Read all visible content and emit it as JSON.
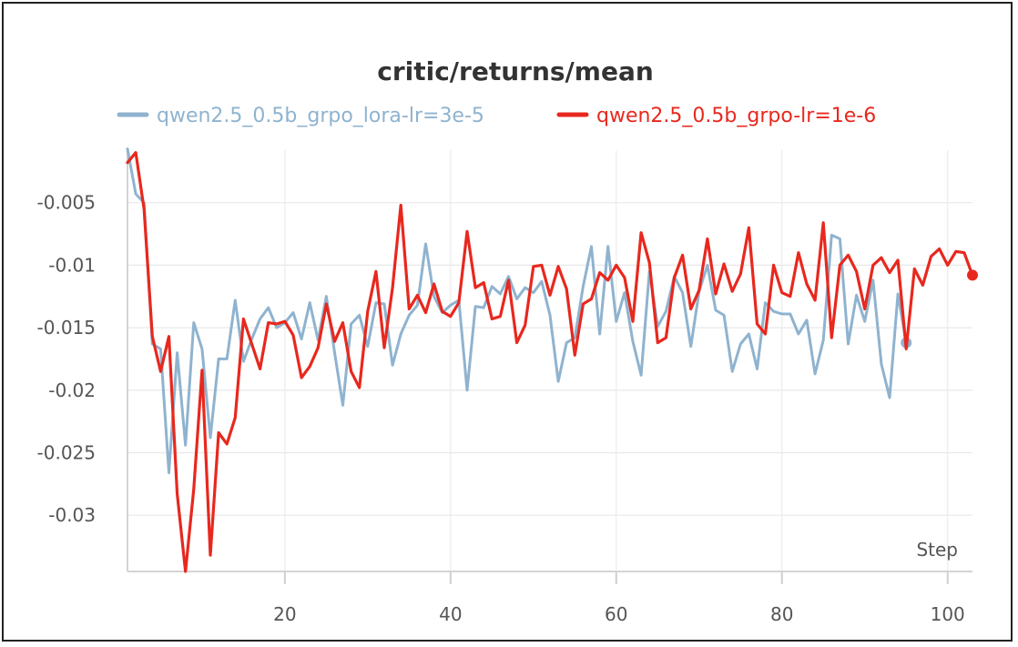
{
  "chart_data": {
    "type": "line",
    "title": "critic/returns/mean",
    "xlabel": "Step",
    "ylabel": "",
    "xlim": [
      1,
      103
    ],
    "ylim": [
      -0.0345,
      -0.0008
    ],
    "xticks": [
      20,
      40,
      60,
      80,
      100
    ],
    "yticks": [
      -0.005,
      -0.01,
      -0.015,
      -0.02,
      -0.025,
      -0.03
    ],
    "xtick_labels": [
      "20",
      "40",
      "60",
      "80",
      "100"
    ],
    "ytick_labels": [
      "-0.005",
      "-0.01",
      "-0.015",
      "-0.02",
      "-0.025",
      "-0.03"
    ],
    "grid": true,
    "legend_position": "top",
    "series": [
      {
        "name": "qwen2.5_0.5b_grpo_lora-lr=3e-5",
        "color": "#8fb3cf",
        "end_marker": "circle",
        "points": [
          [
            1,
            -0.0007
          ],
          [
            2,
            -0.0043
          ],
          [
            3,
            -0.005
          ],
          [
            4,
            -0.0163
          ],
          [
            5,
            -0.0167
          ],
          [
            6,
            -0.0266
          ],
          [
            7,
            -0.017
          ],
          [
            8,
            -0.0244
          ],
          [
            9,
            -0.0146
          ],
          [
            10,
            -0.0167
          ],
          [
            11,
            -0.0238
          ],
          [
            12,
            -0.0175
          ],
          [
            13,
            -0.0175
          ],
          [
            14,
            -0.0128
          ],
          [
            15,
            -0.0177
          ],
          [
            16,
            -0.0159
          ],
          [
            17,
            -0.0143
          ],
          [
            18,
            -0.0134
          ],
          [
            19,
            -0.015
          ],
          [
            20,
            -0.0146
          ],
          [
            21,
            -0.0138
          ],
          [
            22,
            -0.0159
          ],
          [
            23,
            -0.013
          ],
          [
            24,
            -0.016
          ],
          [
            25,
            -0.0125
          ],
          [
            26,
            -0.017
          ],
          [
            27,
            -0.0212
          ],
          [
            28,
            -0.0147
          ],
          [
            29,
            -0.014
          ],
          [
            30,
            -0.0165
          ],
          [
            31,
            -0.013
          ],
          [
            32,
            -0.0131
          ],
          [
            33,
            -0.018
          ],
          [
            34,
            -0.0155
          ],
          [
            35,
            -0.014
          ],
          [
            36,
            -0.0132
          ],
          [
            37,
            -0.0083
          ],
          [
            38,
            -0.0125
          ],
          [
            39,
            -0.0138
          ],
          [
            40,
            -0.0132
          ],
          [
            41,
            -0.0128
          ],
          [
            42,
            -0.02
          ],
          [
            43,
            -0.0133
          ],
          [
            44,
            -0.0134
          ],
          [
            45,
            -0.0117
          ],
          [
            46,
            -0.0123
          ],
          [
            47,
            -0.0109
          ],
          [
            48,
            -0.0127
          ],
          [
            49,
            -0.0118
          ],
          [
            50,
            -0.0122
          ],
          [
            51,
            -0.0113
          ],
          [
            52,
            -0.014
          ],
          [
            53,
            -0.0193
          ],
          [
            54,
            -0.0162
          ],
          [
            55,
            -0.0158
          ],
          [
            56,
            -0.0117
          ],
          [
            57,
            -0.0085
          ],
          [
            58,
            -0.0155
          ],
          [
            59,
            -0.0085
          ],
          [
            60,
            -0.0145
          ],
          [
            61,
            -0.0122
          ],
          [
            62,
            -0.0161
          ],
          [
            63,
            -0.0188
          ],
          [
            64,
            -0.0105
          ],
          [
            65,
            -0.0149
          ],
          [
            66,
            -0.0137
          ],
          [
            67,
            -0.0109
          ],
          [
            68,
            -0.0122
          ],
          [
            69,
            -0.0165
          ],
          [
            70,
            -0.0121
          ],
          [
            71,
            -0.01
          ],
          [
            72,
            -0.0136
          ],
          [
            73,
            -0.014
          ],
          [
            74,
            -0.0185
          ],
          [
            75,
            -0.0163
          ],
          [
            76,
            -0.0155
          ],
          [
            77,
            -0.0183
          ],
          [
            78,
            -0.013
          ],
          [
            79,
            -0.0137
          ],
          [
            80,
            -0.0139
          ],
          [
            81,
            -0.0139
          ],
          [
            82,
            -0.0155
          ],
          [
            83,
            -0.0144
          ],
          [
            84,
            -0.0187
          ],
          [
            85,
            -0.016
          ],
          [
            86,
            -0.0076
          ],
          [
            87,
            -0.0079
          ],
          [
            88,
            -0.0163
          ],
          [
            89,
            -0.0124
          ],
          [
            90,
            -0.0145
          ],
          [
            91,
            -0.0112
          ],
          [
            92,
            -0.0179
          ],
          [
            93,
            -0.0206
          ],
          [
            94,
            -0.0123
          ],
          [
            95,
            -0.0162
          ]
        ]
      },
      {
        "name": "qwen2.5_0.5b_grpo-lr=1e-6",
        "color": "#e8281e",
        "end_marker": "circle",
        "points": [
          [
            1,
            -0.0018
          ],
          [
            2,
            -0.001
          ],
          [
            3,
            -0.0055
          ],
          [
            4,
            -0.0157
          ],
          [
            5,
            -0.0185
          ],
          [
            6,
            -0.0157
          ],
          [
            7,
            -0.0283
          ],
          [
            8,
            -0.0345
          ],
          [
            9,
            -0.0279
          ],
          [
            10,
            -0.0184
          ],
          [
            11,
            -0.0332
          ],
          [
            12,
            -0.0234
          ],
          [
            13,
            -0.0243
          ],
          [
            14,
            -0.0222
          ],
          [
            15,
            -0.0143
          ],
          [
            16,
            -0.0163
          ],
          [
            17,
            -0.0183
          ],
          [
            18,
            -0.0146
          ],
          [
            19,
            -0.0147
          ],
          [
            20,
            -0.0145
          ],
          [
            21,
            -0.0156
          ],
          [
            22,
            -0.019
          ],
          [
            23,
            -0.0181
          ],
          [
            24,
            -0.0166
          ],
          [
            25,
            -0.0131
          ],
          [
            26,
            -0.0161
          ],
          [
            27,
            -0.0146
          ],
          [
            28,
            -0.0185
          ],
          [
            29,
            -0.0198
          ],
          [
            30,
            -0.0137
          ],
          [
            31,
            -0.0105
          ],
          [
            32,
            -0.0166
          ],
          [
            33,
            -0.0118
          ],
          [
            34,
            -0.0052
          ],
          [
            35,
            -0.0135
          ],
          [
            36,
            -0.0124
          ],
          [
            37,
            -0.0138
          ],
          [
            38,
            -0.0115
          ],
          [
            39,
            -0.0137
          ],
          [
            40,
            -0.0141
          ],
          [
            41,
            -0.013
          ],
          [
            42,
            -0.0073
          ],
          [
            43,
            -0.0118
          ],
          [
            44,
            -0.0114
          ],
          [
            45,
            -0.0143
          ],
          [
            46,
            -0.0141
          ],
          [
            47,
            -0.0112
          ],
          [
            48,
            -0.0162
          ],
          [
            49,
            -0.0148
          ],
          [
            50,
            -0.0101
          ],
          [
            51,
            -0.01
          ],
          [
            52,
            -0.0124
          ],
          [
            53,
            -0.0101
          ],
          [
            54,
            -0.0119
          ],
          [
            55,
            -0.0172
          ],
          [
            56,
            -0.0131
          ],
          [
            57,
            -0.0127
          ],
          [
            58,
            -0.0106
          ],
          [
            59,
            -0.0112
          ],
          [
            60,
            -0.01
          ],
          [
            61,
            -0.011
          ],
          [
            62,
            -0.0145
          ],
          [
            63,
            -0.0074
          ],
          [
            64,
            -0.0098
          ],
          [
            65,
            -0.0162
          ],
          [
            66,
            -0.0158
          ],
          [
            67,
            -0.011
          ],
          [
            68,
            -0.0092
          ],
          [
            69,
            -0.0135
          ],
          [
            70,
            -0.012
          ],
          [
            71,
            -0.0079
          ],
          [
            72,
            -0.0123
          ],
          [
            73,
            -0.0099
          ],
          [
            74,
            -0.0121
          ],
          [
            75,
            -0.0107
          ],
          [
            76,
            -0.007
          ],
          [
            77,
            -0.0147
          ],
          [
            78,
            -0.0155
          ],
          [
            79,
            -0.01
          ],
          [
            80,
            -0.0122
          ],
          [
            81,
            -0.0125
          ],
          [
            82,
            -0.009
          ],
          [
            83,
            -0.0115
          ],
          [
            84,
            -0.0128
          ],
          [
            85,
            -0.0066
          ],
          [
            86,
            -0.0158
          ],
          [
            87,
            -0.01
          ],
          [
            88,
            -0.0092
          ],
          [
            89,
            -0.0105
          ],
          [
            90,
            -0.0135
          ],
          [
            91,
            -0.01
          ],
          [
            92,
            -0.0094
          ],
          [
            93,
            -0.0106
          ],
          [
            94,
            -0.0096
          ],
          [
            95,
            -0.0167
          ],
          [
            96,
            -0.0103
          ],
          [
            97,
            -0.0116
          ],
          [
            98,
            -0.0093
          ],
          [
            99,
            -0.0087
          ],
          [
            100,
            -0.01
          ],
          [
            101,
            -0.0089
          ],
          [
            102,
            -0.009
          ],
          [
            103,
            -0.0108
          ]
        ]
      }
    ]
  }
}
